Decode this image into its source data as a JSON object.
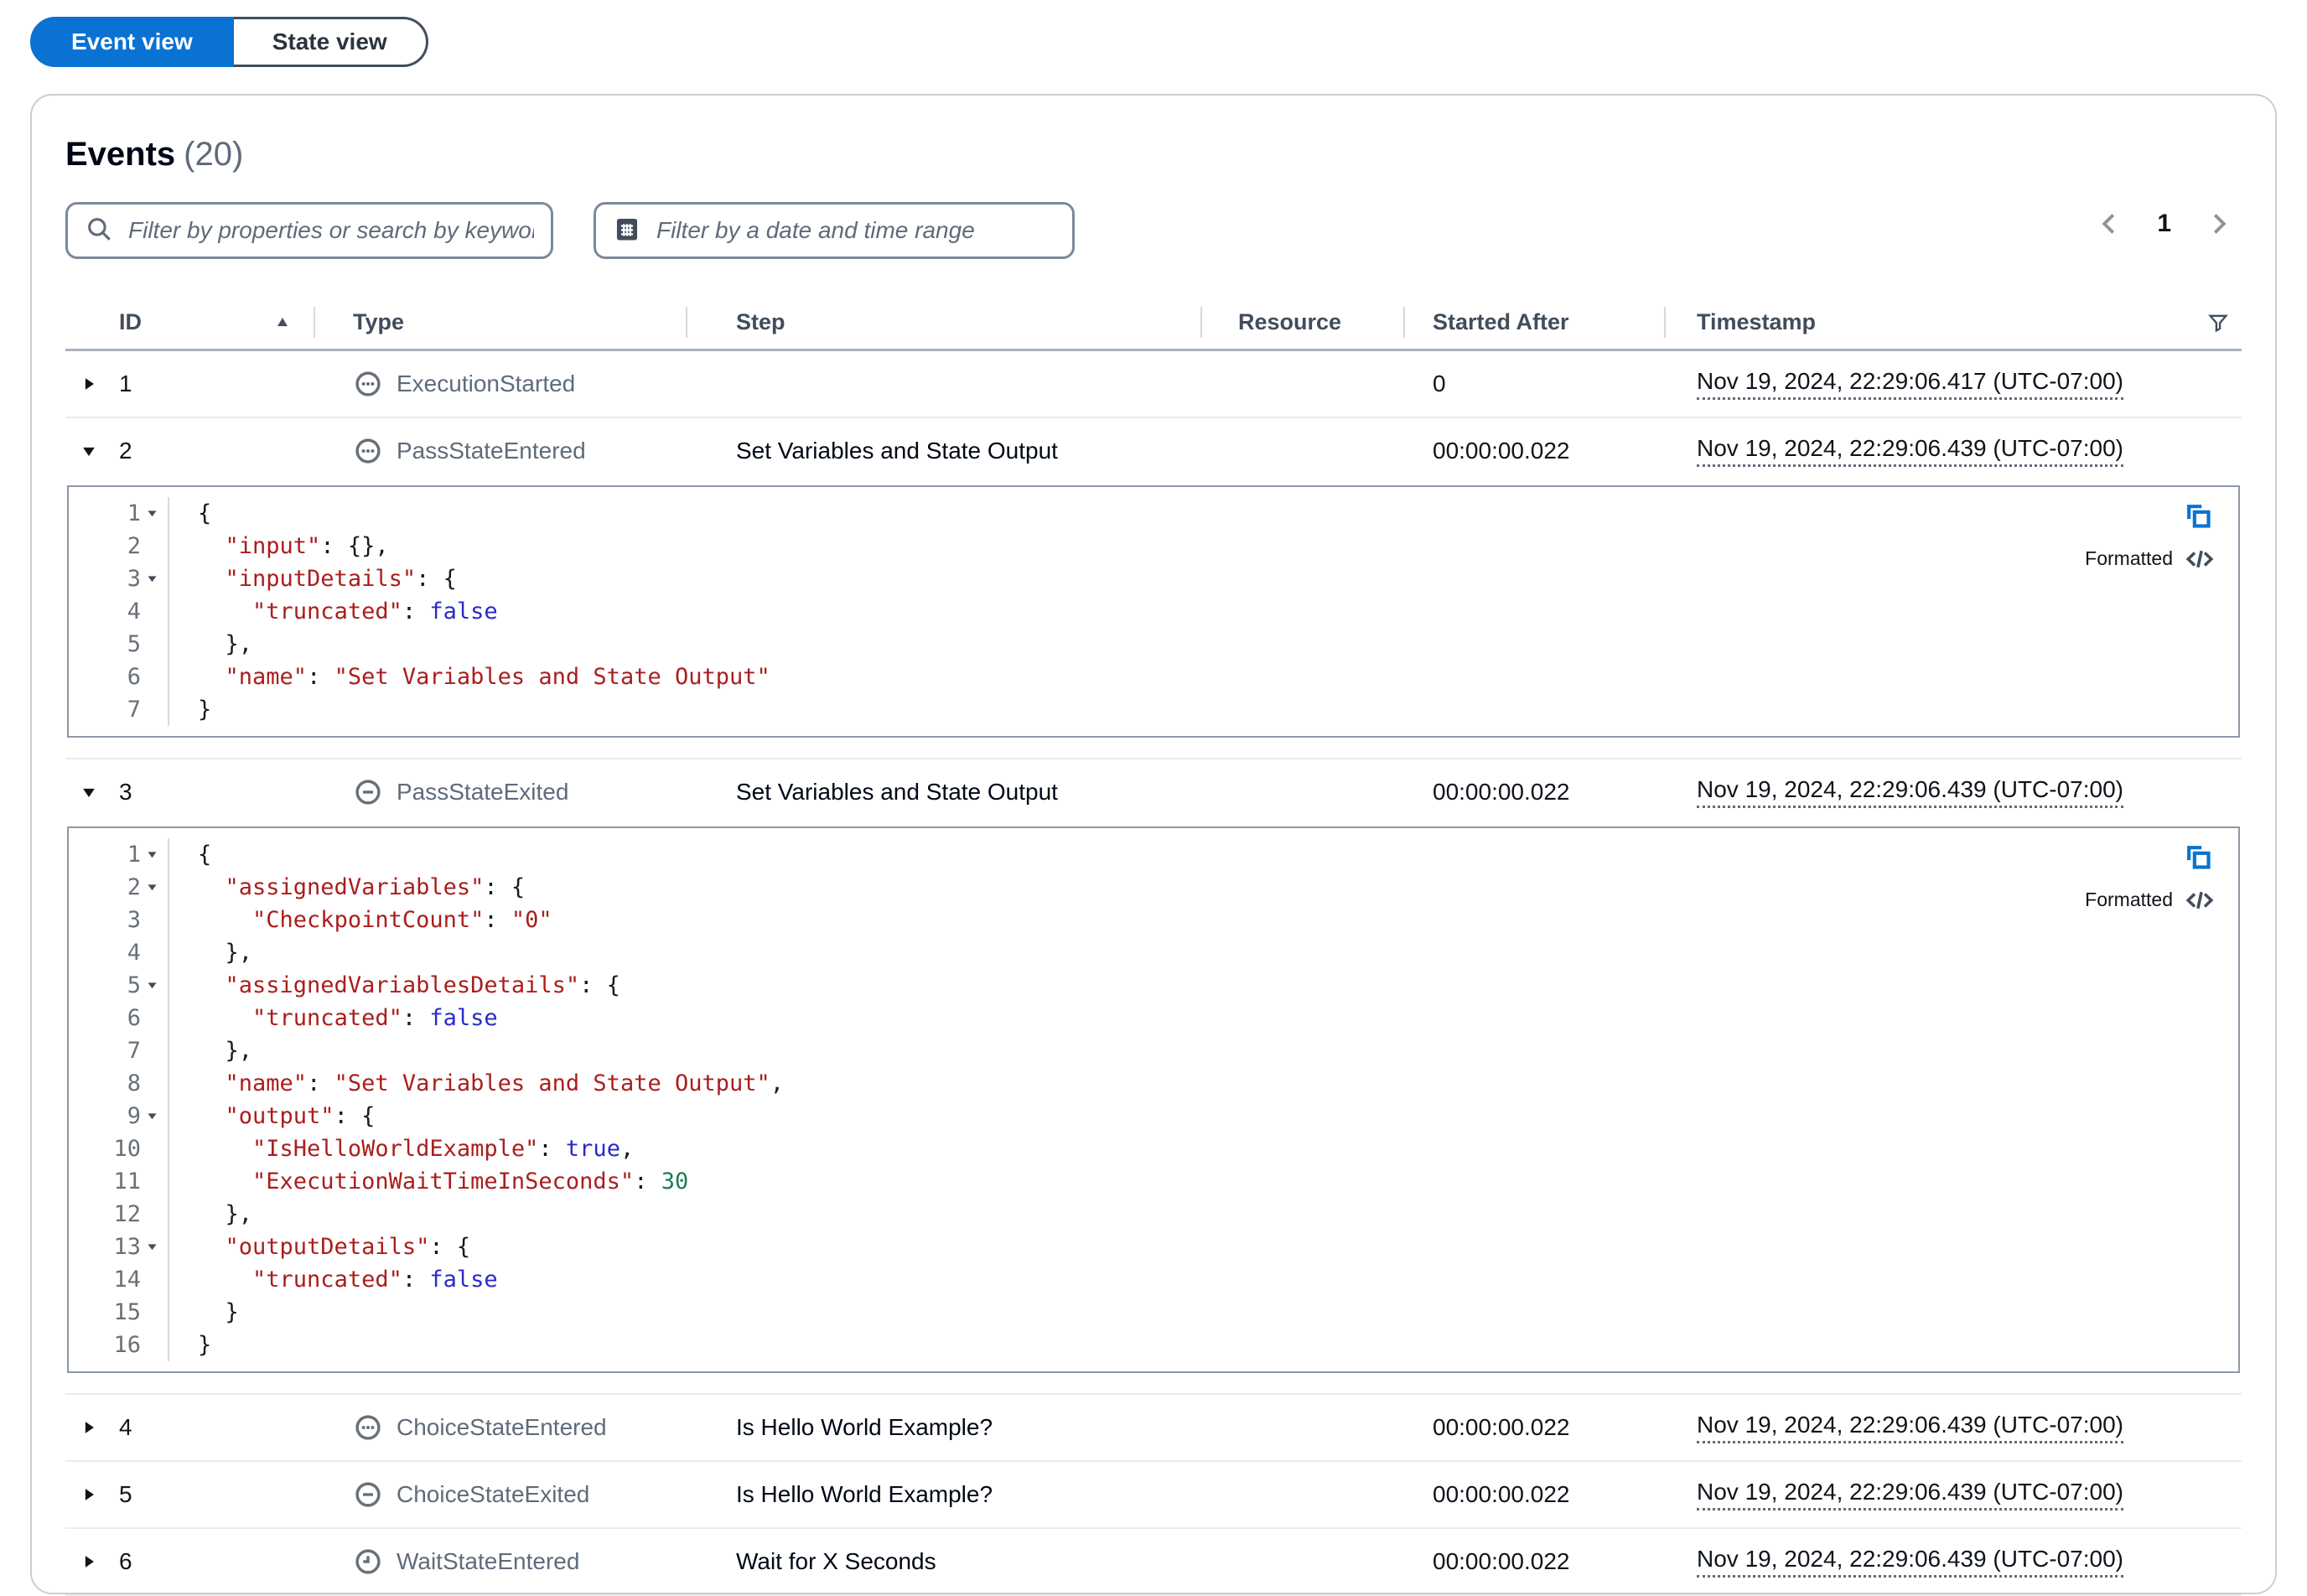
{
  "view_toggle": {
    "options": [
      {
        "label": "Event view",
        "selected": true
      },
      {
        "label": "State view",
        "selected": false
      }
    ]
  },
  "panel": {
    "title": "Events",
    "count": "(20)",
    "search_placeholder": "Filter by properties or search by keyword",
    "date_placeholder": "Filter by a date and time range",
    "pagination": {
      "current_page": "1"
    }
  },
  "table": {
    "columns": [
      "ID",
      "Type",
      "Step",
      "Resource",
      "Started After",
      "Timestamp"
    ],
    "rows": [
      {
        "id": "1",
        "expanded": false,
        "icon": "ellipsis-circle-icon",
        "type": "ExecutionStarted",
        "step": "",
        "resource": "",
        "started_after": "0",
        "timestamp": "Nov 19, 2024, 22:29:06.417 (UTC-07:00)"
      },
      {
        "id": "2",
        "expanded": true,
        "icon": "ellipsis-circle-icon",
        "type": "PassStateEntered",
        "step": "Set Variables and State Output",
        "resource": "",
        "started_after": "00:00:00.022",
        "timestamp": "Nov 19, 2024, 22:29:06.439 (UTC-07:00)",
        "code": 0
      },
      {
        "id": "3",
        "expanded": true,
        "icon": "minus-circle-icon",
        "type": "PassStateExited",
        "step": "Set Variables and State Output",
        "resource": "",
        "started_after": "00:00:00.022",
        "timestamp": "Nov 19, 2024, 22:29:06.439 (UTC-07:00)",
        "code": 1
      },
      {
        "id": "4",
        "expanded": false,
        "icon": "ellipsis-circle-icon",
        "type": "ChoiceStateEntered",
        "step": "Is Hello World Example?",
        "resource": "",
        "started_after": "00:00:00.022",
        "timestamp": "Nov 19, 2024, 22:29:06.439 (UTC-07:00)"
      },
      {
        "id": "5",
        "expanded": false,
        "icon": "minus-circle-icon",
        "type": "ChoiceStateExited",
        "step": "Is Hello World Example?",
        "resource": "",
        "started_after": "00:00:00.022",
        "timestamp": "Nov 19, 2024, 22:29:06.439 (UTC-07:00)"
      },
      {
        "id": "6",
        "expanded": false,
        "icon": "clock-icon",
        "type": "WaitStateEntered",
        "step": "Wait for X Seconds",
        "resource": "",
        "started_after": "00:00:00.022",
        "timestamp": "Nov 19, 2024, 22:29:06.439 (UTC-07:00)"
      }
    ]
  },
  "code_blocks": [
    {
      "format_label": "Formatted",
      "lines": [
        {
          "n": "1",
          "caret": true,
          "tokens": [
            [
              "t",
              "{"
            ]
          ]
        },
        {
          "n": "2",
          "caret": false,
          "tokens": [
            [
              "t",
              "  "
            ],
            [
              "k",
              "\"input\""
            ],
            [
              "t",
              ": {},"
            ]
          ]
        },
        {
          "n": "3",
          "caret": true,
          "tokens": [
            [
              "t",
              "  "
            ],
            [
              "k",
              "\"inputDetails\""
            ],
            [
              "t",
              ": {"
            ]
          ]
        },
        {
          "n": "4",
          "caret": false,
          "tokens": [
            [
              "t",
              "    "
            ],
            [
              "k",
              "\"truncated\""
            ],
            [
              "t",
              ": "
            ],
            [
              "b",
              "false"
            ]
          ]
        },
        {
          "n": "5",
          "caret": false,
          "tokens": [
            [
              "t",
              "  },"
            ]
          ]
        },
        {
          "n": "6",
          "caret": false,
          "tokens": [
            [
              "t",
              "  "
            ],
            [
              "k",
              "\"name\""
            ],
            [
              "t",
              ": "
            ],
            [
              "v",
              "\"Set Variables and State Output\""
            ]
          ]
        },
        {
          "n": "7",
          "caret": false,
          "tokens": [
            [
              "t",
              "}"
            ]
          ]
        }
      ]
    },
    {
      "format_label": "Formatted",
      "lines": [
        {
          "n": "1",
          "caret": true,
          "tokens": [
            [
              "t",
              "{"
            ]
          ]
        },
        {
          "n": "2",
          "caret": true,
          "tokens": [
            [
              "t",
              "  "
            ],
            [
              "k",
              "\"assignedVariables\""
            ],
            [
              "t",
              ": {"
            ]
          ]
        },
        {
          "n": "3",
          "caret": false,
          "tokens": [
            [
              "t",
              "    "
            ],
            [
              "k",
              "\"CheckpointCount\""
            ],
            [
              "t",
              ": "
            ],
            [
              "v",
              "\"0\""
            ]
          ]
        },
        {
          "n": "4",
          "caret": false,
          "tokens": [
            [
              "t",
              "  },"
            ]
          ]
        },
        {
          "n": "5",
          "caret": true,
          "tokens": [
            [
              "t",
              "  "
            ],
            [
              "k",
              "\"assignedVariablesDetails\""
            ],
            [
              "t",
              ": {"
            ]
          ]
        },
        {
          "n": "6",
          "caret": false,
          "tokens": [
            [
              "t",
              "    "
            ],
            [
              "k",
              "\"truncated\""
            ],
            [
              "t",
              ": "
            ],
            [
              "b",
              "false"
            ]
          ]
        },
        {
          "n": "7",
          "caret": false,
          "tokens": [
            [
              "t",
              "  },"
            ]
          ]
        },
        {
          "n": "8",
          "caret": false,
          "tokens": [
            [
              "t",
              "  "
            ],
            [
              "k",
              "\"name\""
            ],
            [
              "t",
              ": "
            ],
            [
              "v",
              "\"Set Variables and State Output\""
            ],
            [
              "t",
              ","
            ]
          ]
        },
        {
          "n": "9",
          "caret": true,
          "tokens": [
            [
              "t",
              "  "
            ],
            [
              "k",
              "\"output\""
            ],
            [
              "t",
              ": {"
            ]
          ]
        },
        {
          "n": "10",
          "caret": false,
          "tokens": [
            [
              "t",
              "    "
            ],
            [
              "k",
              "\"IsHelloWorldExample\""
            ],
            [
              "t",
              ": "
            ],
            [
              "b",
              "true"
            ],
            [
              "t",
              ","
            ]
          ]
        },
        {
          "n": "11",
          "caret": false,
          "tokens": [
            [
              "t",
              "    "
            ],
            [
              "k",
              "\"ExecutionWaitTimeInSeconds\""
            ],
            [
              "t",
              ": "
            ],
            [
              "num",
              "30"
            ]
          ]
        },
        {
          "n": "12",
          "caret": false,
          "tokens": [
            [
              "t",
              "  },"
            ]
          ]
        },
        {
          "n": "13",
          "caret": true,
          "tokens": [
            [
              "t",
              "  "
            ],
            [
              "k",
              "\"outputDetails\""
            ],
            [
              "t",
              ": {"
            ]
          ]
        },
        {
          "n": "14",
          "caret": false,
          "tokens": [
            [
              "t",
              "    "
            ],
            [
              "k",
              "\"truncated\""
            ],
            [
              "t",
              ": "
            ],
            [
              "b",
              "false"
            ]
          ]
        },
        {
          "n": "15",
          "caret": false,
          "tokens": [
            [
              "t",
              "  }"
            ]
          ]
        },
        {
          "n": "16",
          "caret": false,
          "tokens": [
            [
              "t",
              "}"
            ]
          ]
        }
      ]
    }
  ],
  "colors": {
    "accent_blue": "#0972d3",
    "code_key_red": "#ab1d1d",
    "code_boolean_blue": "#2929cc",
    "code_number_green": "#1d7d4f"
  }
}
